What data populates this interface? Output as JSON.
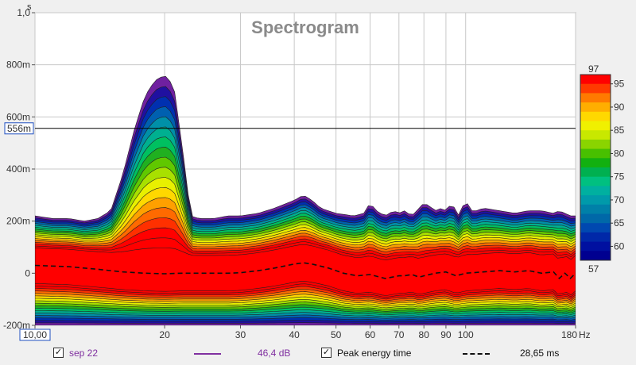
{
  "chart_data": {
    "type": "heatmap",
    "title": "Spectrogram",
    "y_unit_label": "s",
    "x_unit_suffix": "Hz",
    "x_scale": "log",
    "xlim": [
      10,
      180
    ],
    "ylim": [
      -0.2,
      1.0
    ],
    "x_ticks": [
      {
        "value": 10,
        "label": "10,00"
      },
      {
        "value": 20,
        "label": "20"
      },
      {
        "value": 30,
        "label": "30"
      },
      {
        "value": 40,
        "label": "40"
      },
      {
        "value": 50,
        "label": "50"
      },
      {
        "value": 60,
        "label": "60"
      },
      {
        "value": 70,
        "label": "70"
      },
      {
        "value": 80,
        "label": "80"
      },
      {
        "value": 90,
        "label": "90"
      },
      {
        "value": 100,
        "label": "100"
      },
      {
        "value": 180,
        "label": "180"
      }
    ],
    "y_ticks": [
      {
        "value": 1.0,
        "label": "1,0"
      },
      {
        "value": 0.8,
        "label": "800m"
      },
      {
        "value": 0.6,
        "label": "600m"
      },
      {
        "value": 0.4,
        "label": "400m"
      },
      {
        "value": 0.2,
        "label": "200m"
      },
      {
        "value": 0.0,
        "label": "0"
      },
      {
        "value": -0.2,
        "label": "-200m"
      }
    ],
    "cursor": {
      "y": 0.556,
      "label": "556m"
    },
    "grid": true,
    "colorbar": {
      "max_label": "97",
      "min_label": "57",
      "ticks": [
        "95",
        "90",
        "85",
        "80",
        "75",
        "70",
        "65",
        "60"
      ],
      "colors": [
        "#ff0000",
        "#ff3a00",
        "#ff7a00",
        "#ffae00",
        "#ffd800",
        "#f0f000",
        "#c8e800",
        "#8ad400",
        "#48c000",
        "#12b010",
        "#00b050",
        "#00c080",
        "#00b0a0",
        "#009aaa",
        "#0080a8",
        "#0068a8",
        "#0048b0",
        "#0028a8",
        "#0010a0",
        "#000090"
      ],
      "min_value": 57,
      "max_value": 97
    },
    "peak_energy_time_ms": 28.65,
    "envelope": {
      "x": [
        10,
        11,
        12,
        13,
        14,
        15,
        16,
        17,
        18,
        19,
        20,
        21,
        22,
        23,
        24,
        26,
        28,
        30,
        33,
        36,
        40,
        42,
        44,
        46,
        50,
        55,
        58,
        60,
        62,
        65,
        68,
        70,
        72,
        75,
        78,
        80,
        82,
        85,
        88,
        90,
        93,
        96,
        100,
        103,
        106,
        110,
        120,
        130,
        140,
        150,
        160,
        165,
        170,
        175,
        180
      ],
      "top": [
        0.22,
        0.21,
        0.21,
        0.2,
        0.21,
        0.24,
        0.38,
        0.55,
        0.68,
        0.74,
        0.76,
        0.72,
        0.48,
        0.22,
        0.21,
        0.21,
        0.22,
        0.22,
        0.23,
        0.25,
        0.28,
        0.3,
        0.28,
        0.25,
        0.23,
        0.22,
        0.23,
        0.27,
        0.24,
        0.22,
        0.24,
        0.23,
        0.24,
        0.22,
        0.25,
        0.27,
        0.26,
        0.24,
        0.25,
        0.24,
        0.27,
        0.22,
        0.28,
        0.24,
        0.24,
        0.25,
        0.24,
        0.23,
        0.24,
        0.24,
        0.23,
        0.24,
        0.23,
        0.22,
        0.22
      ],
      "bottom": -0.2
    },
    "peak_energy_curve": {
      "x": [
        10,
        12,
        14,
        16,
        18,
        20,
        22,
        25,
        28,
        30,
        33,
        36,
        40,
        42,
        44,
        48,
        52,
        56,
        60,
        65,
        70,
        72,
        75,
        78,
        80,
        85,
        90,
        95,
        100,
        110,
        120,
        130,
        140,
        150,
        160,
        165,
        170,
        175,
        180
      ],
      "y": [
        0.03,
        0.025,
        0.015,
        0.005,
        0.0,
        -0.002,
        0.0,
        0.0,
        0.0,
        0.002,
        0.01,
        0.02,
        0.035,
        0.04,
        0.035,
        0.02,
        0.0,
        -0.01,
        -0.005,
        -0.02,
        -0.01,
        -0.01,
        -0.005,
        -0.015,
        -0.01,
        0.0,
        0.005,
        -0.01,
        0.0,
        0.005,
        0.01,
        0.005,
        0.01,
        0.0,
        0.005,
        -0.02,
        0.0,
        -0.02,
        0.0
      ]
    }
  },
  "legend": {
    "series_label": "sep 22",
    "series_value": "46,4 dB",
    "series_color": "#8030a0",
    "peak_label": "Peak energy time",
    "peak_value": "28,65 ms",
    "check_mark": "✓"
  }
}
